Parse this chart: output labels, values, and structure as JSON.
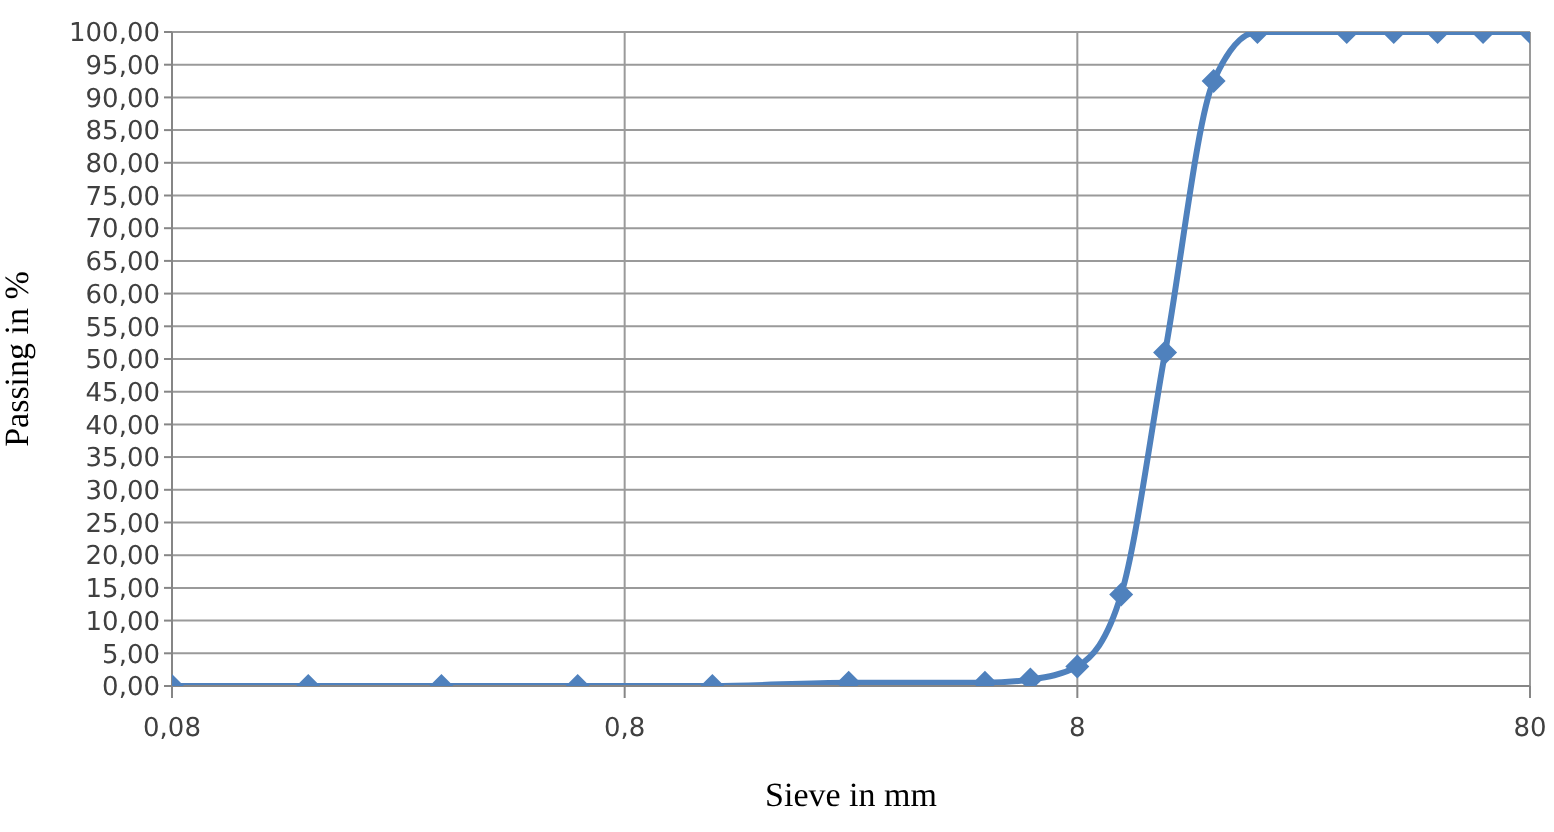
{
  "chart_data": {
    "type": "line",
    "xlabel": "Sieve in mm",
    "ylabel": "Passing in %",
    "x": [
      0.08,
      0.16,
      0.315,
      0.63,
      1.25,
      2.5,
      5,
      6.3,
      8,
      10,
      12.5,
      16,
      20,
      31.5,
      40,
      50,
      63,
      80
    ],
    "series": [
      {
        "color": "#4f81bd",
        "values": [
          0,
          0,
          0,
          0,
          0,
          0.5,
          0.5,
          1,
          3,
          14,
          51,
          92.5,
          100,
          100,
          100,
          100,
          100,
          100
        ]
      }
    ],
    "xlim": [
      0.08,
      80
    ],
    "xticks": [
      {
        "value": 0.08,
        "label": "0,08"
      },
      {
        "value": 0.8,
        "label": "0,8"
      },
      {
        "value": 8,
        "label": "8"
      },
      {
        "value": 80,
        "label": "80"
      }
    ],
    "ylim": [
      0,
      100
    ],
    "yticks": [
      {
        "value": 0,
        "label": "0,00"
      },
      {
        "value": 5,
        "label": "5,00"
      },
      {
        "value": 10,
        "label": "10,00"
      },
      {
        "value": 15,
        "label": "15,00"
      },
      {
        "value": 20,
        "label": "20,00"
      },
      {
        "value": 25,
        "label": "25,00"
      },
      {
        "value": 30,
        "label": "30,00"
      },
      {
        "value": 35,
        "label": "35,00"
      },
      {
        "value": 40,
        "label": "40,00"
      },
      {
        "value": 45,
        "label": "45,00"
      },
      {
        "value": 50,
        "label": "50,00"
      },
      {
        "value": 55,
        "label": "55,00"
      },
      {
        "value": 60,
        "label": "60,00"
      },
      {
        "value": 65,
        "label": "65,00"
      },
      {
        "value": 70,
        "label": "70,00"
      },
      {
        "value": 75,
        "label": "75,00"
      },
      {
        "value": 80,
        "label": "80,00"
      },
      {
        "value": 85,
        "label": "85,00"
      },
      {
        "value": 90,
        "label": "90,00"
      },
      {
        "value": 95,
        "label": "95,00"
      },
      {
        "value": 100,
        "label": "100,00"
      }
    ],
    "log": "x",
    "grid": true,
    "marker": "diamond",
    "line_style": "solid"
  }
}
